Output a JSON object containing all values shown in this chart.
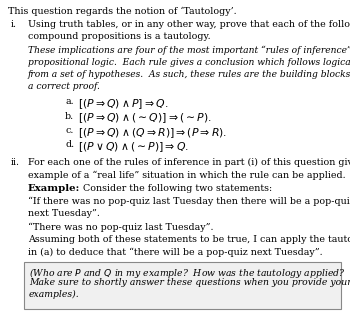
{
  "bg_color": "#ffffff",
  "title": "This question regards the notion of ‘Tautology’.",
  "math_items": [
    [
      "a.",
      "$[(P \\Rightarrow Q) \\wedge P] \\Rightarrow Q.$"
    ],
    [
      "b.",
      "$[(P \\Rightarrow Q) \\wedge (\\sim Q)] \\Rightarrow (\\sim P).$"
    ],
    [
      "c.",
      "$[(P \\Rightarrow Q) \\wedge (Q \\Rightarrow R)] \\Rightarrow (P \\Rightarrow R).$"
    ],
    [
      "d.",
      "$[(P \\vee Q) \\wedge (\\sim P)] \\Rightarrow Q.$"
    ]
  ],
  "box_bg": "#f0f0f0",
  "box_edge": "#888888",
  "fs": 6.8,
  "fs_math": 7.8,
  "lh": 0.057
}
